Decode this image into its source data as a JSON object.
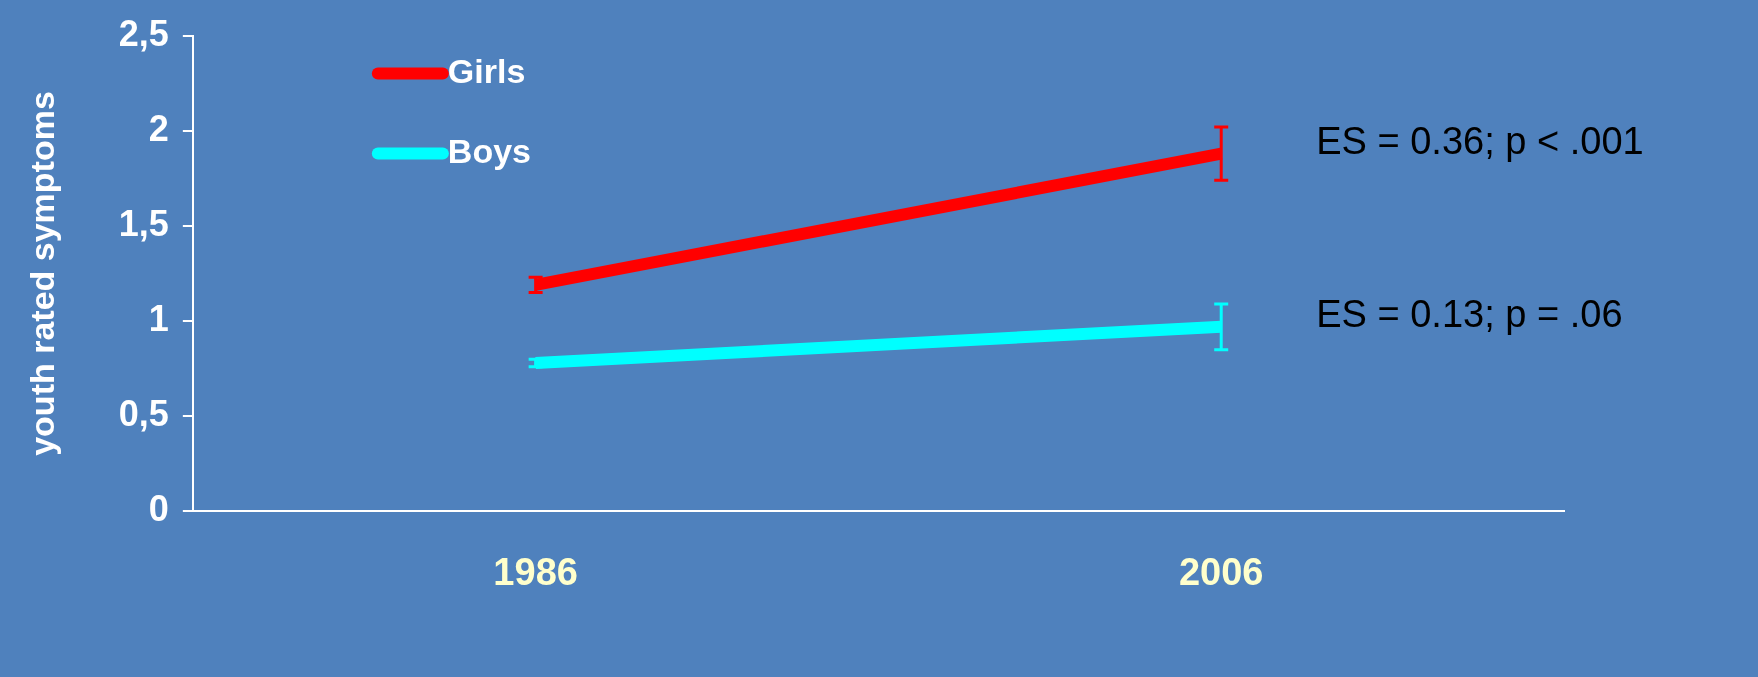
{
  "chart_data": {
    "type": "line",
    "ylabel": "youth rated symptoms",
    "categories": [
      "1986",
      "2006"
    ],
    "series": [
      {
        "name": "Girls",
        "color": "#ff0000",
        "values": [
          1.19,
          1.88
        ],
        "errors": [
          0.04,
          0.14
        ]
      },
      {
        "name": "Boys",
        "color": "#00ffff",
        "values": [
          0.78,
          0.97
        ],
        "errors": [
          0.02,
          0.12
        ]
      }
    ],
    "ylim": [
      0,
      2.5
    ],
    "yticks": [
      0,
      {
        "value": 0.5,
        "label": "0,5"
      },
      1,
      {
        "value": 1.5,
        "label": "1,5"
      },
      2,
      {
        "value": 2.5,
        "label": "2,5"
      }
    ],
    "grid": false,
    "legend": "top left",
    "line_style": "solid",
    "annotations": [
      {
        "text": "ES = 0.36; p < .001",
        "x": "2006",
        "y": 1.88
      },
      {
        "text": "ES = 0.13; p = .06",
        "x": "2006",
        "y": 0.97
      }
    ]
  }
}
